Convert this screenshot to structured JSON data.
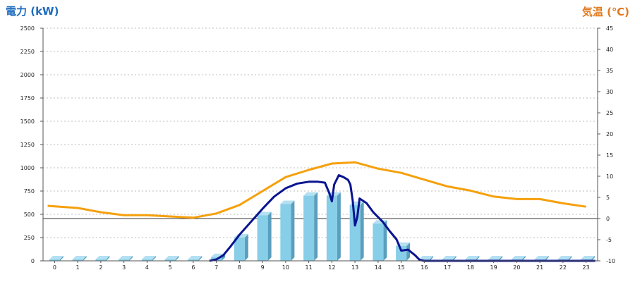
{
  "chart_data": {
    "type": "bar",
    "left_axis_title": "電力 (kW)",
    "right_axis_title": "気温 (℃)",
    "categories": [
      "0",
      "1",
      "2",
      "3",
      "4",
      "5",
      "6",
      "7",
      "8",
      "9",
      "10",
      "11",
      "12",
      "13",
      "14",
      "15",
      "16",
      "17",
      "18",
      "19",
      "20",
      "21",
      "22",
      "23"
    ],
    "left_axis": {
      "min": 0,
      "max": 2500,
      "ticks": [
        "0",
        "250",
        "500",
        "750",
        "1000",
        "1250",
        "1500",
        "1750",
        "2000",
        "2250",
        "2500"
      ]
    },
    "right_axis": {
      "min": -10,
      "max": 45,
      "ticks": [
        "-10",
        "-5",
        "0",
        "5",
        "10",
        "15",
        "20",
        "25",
        "30",
        "35",
        "40",
        "45"
      ]
    },
    "bars": {
      "values": [
        0,
        0,
        0,
        0,
        0,
        0,
        0,
        40,
        250,
        490,
        610,
        700,
        700,
        600,
        400,
        160,
        0,
        0,
        0,
        0,
        0,
        0,
        0,
        0
      ],
      "color": "#87cee8",
      "side_color": "#5a9fbd",
      "top_color": "#b4e0f2"
    },
    "power_line": {
      "points": [
        [
          6.7,
          0
        ],
        [
          7.0,
          15
        ],
        [
          7.3,
          60
        ],
        [
          7.6,
          150
        ],
        [
          8.0,
          280
        ],
        [
          8.5,
          420
        ],
        [
          9.0,
          560
        ],
        [
          9.5,
          690
        ],
        [
          10.0,
          780
        ],
        [
          10.5,
          830
        ],
        [
          11.0,
          850
        ],
        [
          11.4,
          850
        ],
        [
          11.7,
          840
        ],
        [
          11.9,
          720
        ],
        [
          12.0,
          640
        ],
        [
          12.1,
          820
        ],
        [
          12.3,
          920
        ],
        [
          12.5,
          900
        ],
        [
          12.7,
          870
        ],
        [
          12.8,
          820
        ],
        [
          12.9,
          650
        ],
        [
          13.0,
          380
        ],
        [
          13.1,
          470
        ],
        [
          13.2,
          670
        ],
        [
          13.5,
          620
        ],
        [
          13.8,
          520
        ],
        [
          14.2,
          420
        ],
        [
          14.5,
          320
        ],
        [
          14.8,
          230
        ],
        [
          14.9,
          170
        ],
        [
          15.0,
          110
        ],
        [
          15.3,
          120
        ],
        [
          15.6,
          60
        ],
        [
          15.8,
          10
        ],
        [
          16.0,
          0
        ],
        [
          23.4,
          0
        ]
      ],
      "color": "#0a1490"
    },
    "temperature_line": {
      "points": [
        [
          -0.3,
          3.0
        ],
        [
          1,
          2.5
        ],
        [
          2,
          1.5
        ],
        [
          3,
          0.8
        ],
        [
          4,
          0.8
        ],
        [
          5,
          0.5
        ],
        [
          6,
          0.2
        ],
        [
          7,
          1.2
        ],
        [
          8,
          3.2
        ],
        [
          9,
          6.5
        ],
        [
          10,
          9.8
        ],
        [
          11,
          11.5
        ],
        [
          12,
          13.0
        ],
        [
          13,
          13.3
        ],
        [
          14,
          11.8
        ],
        [
          15,
          10.8
        ],
        [
          16,
          9.2
        ],
        [
          17,
          7.6
        ],
        [
          18,
          6.6
        ],
        [
          19,
          5.2
        ],
        [
          20,
          4.6
        ],
        [
          21,
          4.6
        ],
        [
          22,
          3.6
        ],
        [
          23,
          2.8
        ]
      ],
      "color": "#f5a00c"
    },
    "grid": true,
    "left_title_color": "#1f6bbd",
    "right_title_color": "#e07a1e"
  }
}
